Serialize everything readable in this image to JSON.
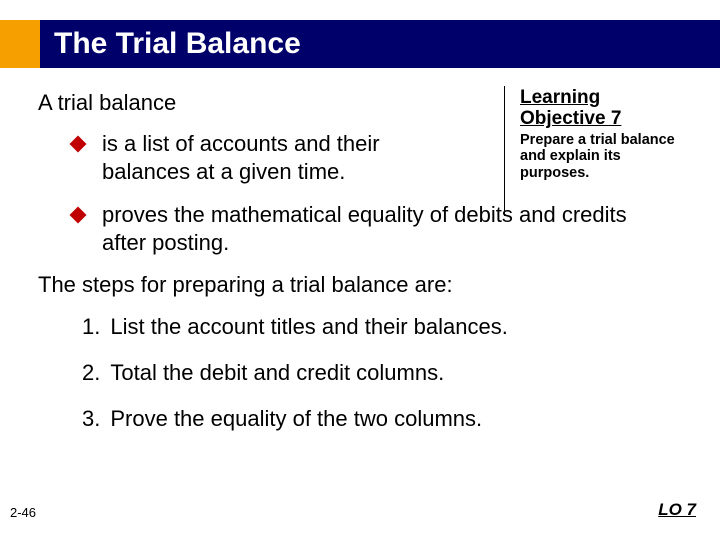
{
  "colors": {
    "orange": "#f5a000",
    "navy": "#00006a",
    "bullet": "#c00000",
    "text": "#000000",
    "title_text": "#ffffff"
  },
  "title": "The Trial Balance",
  "intro": "A trial balance",
  "bullets": [
    "is a list of accounts and their balances at a given time.",
    "proves the mathematical equality of debits and credits after posting."
  ],
  "steps_intro": "The steps for preparing a trial balance are:",
  "steps": [
    {
      "num": "1.",
      "text": "List the account titles and their balances."
    },
    {
      "num": "2.",
      "text": "Total the debit and credit columns."
    },
    {
      "num": "3.",
      "text": "Prove the equality of the two columns."
    }
  ],
  "sidebar": {
    "title": "Learning Objective 7",
    "desc": "Prepare a trial balance and explain its purposes."
  },
  "footer": {
    "slide_num": "2-46",
    "lo_tag": "LO 7"
  }
}
